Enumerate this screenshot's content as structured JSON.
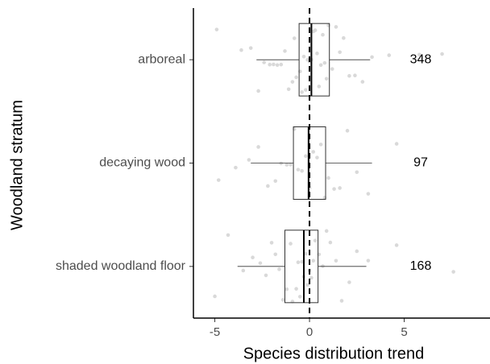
{
  "chart_data": {
    "type": "boxplot",
    "x_label": "Species distribution trend",
    "y_label": "Woodland stratum",
    "categories": [
      "shaded woodland floor",
      "decaying wood",
      "arboreal"
    ],
    "boxes": [
      {
        "low": -3.8,
        "q1": -1.3,
        "median": -0.3,
        "q3": 0.45,
        "high": 3.0
      },
      {
        "low": -3.1,
        "q1": -0.85,
        "median": -0.05,
        "q3": 0.85,
        "high": 3.3
      },
      {
        "low": -2.8,
        "q1": -0.55,
        "median": 0.1,
        "q3": 1.05,
        "high": 3.2
      }
    ],
    "counts": [
      168,
      97,
      348
    ],
    "points": [
      [
        -5.0,
        -4.3,
        -3.5,
        -3.0,
        -2.6,
        -2.3,
        -2.0,
        -1.8,
        -1.6,
        -1.4,
        -1.2,
        -1.0,
        -0.9,
        -0.7,
        -0.6,
        -0.5,
        -0.4,
        -0.3,
        -0.2,
        -0.1,
        0.0,
        0.1,
        0.2,
        0.3,
        0.5,
        0.7,
        0.9,
        1.1,
        1.4,
        1.7,
        2.1,
        2.5,
        3.1,
        4.6,
        7.6
      ],
      [
        -4.8,
        -3.9,
        -3.2,
        -2.7,
        -2.2,
        -1.8,
        -1.5,
        -1.2,
        -1.0,
        -0.8,
        -0.6,
        -0.4,
        -0.2,
        0.0,
        0.2,
        0.4,
        0.6,
        0.8,
        1.0,
        1.3,
        1.6,
        2.0,
        2.5,
        3.1,
        4.6
      ],
      [
        -4.9,
        -3.6,
        -3.1,
        -2.7,
        -2.4,
        -2.1,
        -1.9,
        -1.7,
        -1.5,
        -1.3,
        -1.1,
        -0.9,
        -0.8,
        -0.7,
        -0.5,
        -0.4,
        -0.3,
        -0.2,
        -0.1,
        0.0,
        0.1,
        0.2,
        0.3,
        0.4,
        0.5,
        0.6,
        0.7,
        0.8,
        0.9,
        1.0,
        1.2,
        1.4,
        1.6,
        1.8,
        2.1,
        2.4,
        2.8,
        3.3,
        4.2,
        5.8,
        7.0
      ]
    ],
    "reference_line": 0,
    "xlim": [
      -6.13,
      9.53
    ],
    "xticks": [
      -5,
      0,
      5
    ],
    "box_color": "#333333",
    "point_color": "#d9d9d9"
  }
}
